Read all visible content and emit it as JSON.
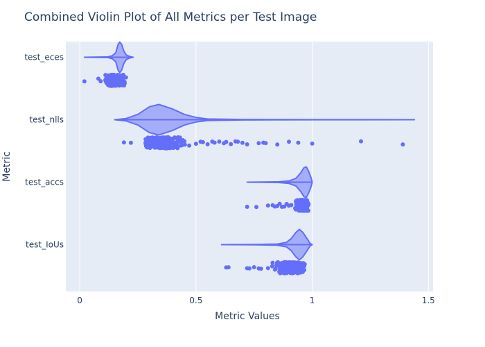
{
  "chart_data": {
    "type": "violin",
    "title": "Combined Violin Plot of All Metrics per Test Image",
    "xlabel": "Metric Values",
    "ylabel": "Metric",
    "xlim": [
      -0.06,
      1.52
    ],
    "x_ticks": [
      0,
      0.5,
      1,
      1.5
    ],
    "x_tick_labels": [
      "0",
      "0.5",
      "1",
      "1.5"
    ],
    "grid": true,
    "colors": {
      "fill": "#636efa",
      "plot_bg": "#e5ecf6",
      "grid": "#ffffff",
      "text": "#2a3f5f"
    },
    "categories": [
      "test_eces",
      "test_nlls",
      "test_accs",
      "test_IoUs"
    ],
    "series": [
      {
        "category": "test_eces",
        "range": [
          0.02,
          0.23
        ],
        "mode": 0.17,
        "density": [
          [
            0.02,
            0.0
          ],
          [
            0.12,
            0.02
          ],
          [
            0.14,
            0.1
          ],
          [
            0.155,
            0.3
          ],
          [
            0.165,
            0.85
          ],
          [
            0.172,
            1.0
          ],
          [
            0.18,
            0.85
          ],
          [
            0.19,
            0.4
          ],
          [
            0.2,
            0.15
          ],
          [
            0.215,
            0.05
          ],
          [
            0.23,
            0.0
          ]
        ],
        "cluster": [
          0.1,
          0.21
        ],
        "points": [
          0.02,
          0.08,
          0.09,
          0.11,
          0.12,
          0.13
        ]
      },
      {
        "category": "test_nlls",
        "range": [
          0.15,
          1.44
        ],
        "mode": 0.33,
        "density": [
          [
            0.15,
            0.0
          ],
          [
            0.2,
            0.08
          ],
          [
            0.25,
            0.35
          ],
          [
            0.3,
            0.85
          ],
          [
            0.34,
            1.0
          ],
          [
            0.4,
            0.7
          ],
          [
            0.45,
            0.35
          ],
          [
            0.5,
            0.15
          ],
          [
            0.55,
            0.05
          ],
          [
            0.7,
            0.015
          ],
          [
            1.0,
            0.008
          ],
          [
            1.44,
            0.0
          ]
        ],
        "cluster": [
          0.25,
          0.48
        ],
        "points": [
          0.19,
          0.22,
          0.5,
          0.52,
          0.53,
          0.55,
          0.57,
          0.58,
          0.6,
          0.62,
          0.63,
          0.65,
          0.67,
          0.68,
          0.7,
          0.72,
          0.77,
          0.79,
          0.8,
          0.85,
          0.9,
          0.94,
          1.0,
          1.21,
          1.39
        ]
      },
      {
        "category": "test_accs",
        "range": [
          0.72,
          1.0
        ],
        "mode": 0.97,
        "density": [
          [
            0.72,
            0.0
          ],
          [
            0.85,
            0.02
          ],
          [
            0.9,
            0.08
          ],
          [
            0.93,
            0.25
          ],
          [
            0.95,
            0.6
          ],
          [
            0.965,
            0.95
          ],
          [
            0.975,
            1.0
          ],
          [
            0.985,
            0.7
          ],
          [
            0.995,
            0.3
          ],
          [
            1.0,
            0.0
          ]
        ],
        "cluster": [
          0.92,
          0.995
        ],
        "points": [
          0.72,
          0.76,
          0.81,
          0.83,
          0.84,
          0.85,
          0.86,
          0.87,
          0.88,
          0.89,
          0.9,
          0.91
        ]
      },
      {
        "category": "test_IoUs",
        "range": [
          0.61,
          1.0
        ],
        "mode": 0.945,
        "density": [
          [
            0.61,
            0.0
          ],
          [
            0.75,
            0.01
          ],
          [
            0.85,
            0.04
          ],
          [
            0.89,
            0.15
          ],
          [
            0.91,
            0.4
          ],
          [
            0.93,
            0.8
          ],
          [
            0.945,
            1.0
          ],
          [
            0.96,
            0.8
          ],
          [
            0.98,
            0.35
          ],
          [
            0.99,
            0.1
          ],
          [
            1.0,
            0.0
          ]
        ],
        "cluster": [
          0.82,
          0.99
        ],
        "points": [
          0.63,
          0.64,
          0.72,
          0.73,
          0.75,
          0.77,
          0.78,
          0.81
        ]
      }
    ]
  }
}
